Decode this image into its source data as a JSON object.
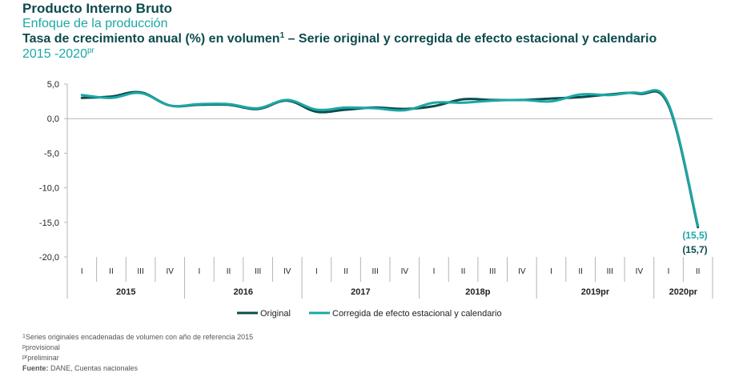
{
  "header": {
    "title": "Producto Interno Bruto",
    "subtitle": "Enfoque de la producción",
    "chart_title": "Tasa de crecimiento anual (%) en volumen",
    "chart_title_sup": "1",
    "chart_title_rest": " – Serie original y corregida de efecto estacional y calendario",
    "period": "2015 -2020",
    "period_sup": "pr"
  },
  "footnotes": {
    "f1_sup": "1",
    "f1": "Series originales encadenadas de volumen con año de referencia 2015",
    "f2_sup": "p",
    "f2": "provisional",
    "f3_sup": "pr",
    "f3": "preliminar",
    "f4_label": "Fuente:",
    "f4": " DANE, Cuentas nacionales"
  },
  "colors": {
    "original": "#0d4b4d",
    "corregida": "#1ba7a5",
    "axis": "#b5b5b5",
    "grid_text": "#222222"
  },
  "chart_data": {
    "type": "line",
    "title": "Tasa de crecimiento anual (%) en volumen – Serie original y corregida de efecto estacional y calendario",
    "ylim": [
      -20,
      5
    ],
    "yticks": [
      "5,0",
      "0,0",
      "-5,0",
      "-10,0",
      "-15,0",
      "-20,0"
    ],
    "ytick_values": [
      5,
      0,
      -5,
      -10,
      -15,
      -20
    ],
    "quarters": [
      "I",
      "II",
      "III",
      "IV",
      "I",
      "II",
      "III",
      "IV",
      "I",
      "II",
      "III",
      "IV",
      "I",
      "II",
      "III",
      "IV",
      "I",
      "II",
      "III",
      "IV",
      "I",
      "II"
    ],
    "years": [
      {
        "label": "2015",
        "quarters": 4
      },
      {
        "label": "2016",
        "quarters": 4
      },
      {
        "label": "2017",
        "quarters": 4
      },
      {
        "label": "2018p",
        "quarters": 4
      },
      {
        "label": "2019pr",
        "quarters": 4
      },
      {
        "label": "2020pr",
        "quarters": 2
      }
    ],
    "series": [
      {
        "name": "Original",
        "color": "#0d4b4d",
        "values": [
          3.0,
          3.2,
          3.8,
          1.9,
          2.0,
          2.0,
          1.4,
          2.6,
          1.0,
          1.3,
          1.6,
          1.4,
          1.8,
          2.8,
          2.7,
          2.7,
          2.9,
          3.1,
          3.5,
          3.6,
          1.9,
          -15.7
        ]
      },
      {
        "name": "Corregida de efecto estacional y calendario",
        "color": "#1ba7a5",
        "values": [
          3.4,
          3.0,
          3.7,
          1.9,
          2.1,
          2.1,
          1.5,
          2.7,
          1.3,
          1.6,
          1.5,
          1.2,
          2.3,
          2.3,
          2.6,
          2.7,
          2.5,
          3.5,
          3.4,
          3.7,
          2.1,
          -15.5
        ]
      }
    ],
    "annotations": [
      {
        "text": "(15,5)",
        "series": 1,
        "index": 21
      },
      {
        "text": "(15,7)",
        "series": 0,
        "index": 21
      }
    ],
    "legend": [
      "Original",
      "Corregida de efecto estacional y calendario"
    ]
  }
}
